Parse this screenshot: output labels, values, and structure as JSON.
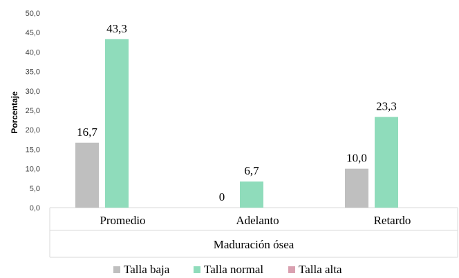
{
  "chart_data": {
    "type": "bar",
    "ylabel": "Porcentaje",
    "xlabel": "Maduración ósea",
    "ylim": [
      0,
      50
    ],
    "y_ticks": [
      "0,0",
      "5,0",
      "10,0",
      "15,0",
      "20,0",
      "25,0",
      "30,0",
      "35,0",
      "40,0",
      "45,0",
      "50,0"
    ],
    "categories": [
      "Promedio",
      "Adelanto",
      "Retardo"
    ],
    "series": [
      {
        "name": "Talla baja",
        "color": "#bfbfbf",
        "values": [
          16.7,
          0,
          10.0
        ],
        "labels": [
          "16,7",
          "0",
          "10,0"
        ]
      },
      {
        "name": "Talla normal",
        "color": "#8fdcbb",
        "values": [
          43.3,
          6.7,
          23.3
        ],
        "labels": [
          "43,3",
          "6,7",
          "23,3"
        ]
      },
      {
        "name": "Talla alta",
        "color": "#d9a0b0",
        "values": [
          0,
          0,
          0
        ],
        "labels": [
          "",
          "",
          ""
        ]
      }
    ],
    "grid": false,
    "legend_position": "bottom"
  }
}
